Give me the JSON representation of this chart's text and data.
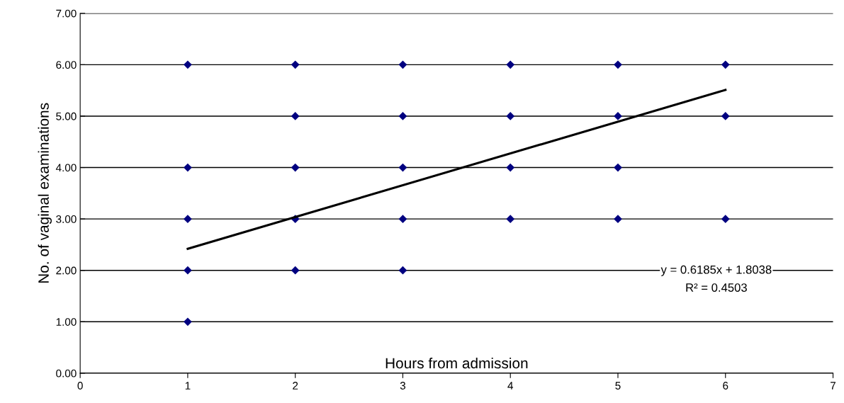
{
  "chart_data": {
    "type": "scatter",
    "xlabel": "Hours from admission",
    "ylabel": "No. of vaginal examinations",
    "series": [
      {
        "color": "#000080",
        "marker": "diamond",
        "x": [
          1,
          1,
          1,
          1,
          1,
          2,
          2,
          2,
          2,
          2,
          3,
          3,
          3,
          3,
          3,
          4,
          4,
          4,
          4,
          5,
          5,
          5,
          5,
          6,
          6,
          6
        ],
        "values": [
          1,
          2,
          3,
          4,
          6,
          2,
          3,
          4,
          5,
          6,
          2,
          3,
          4,
          5,
          6,
          3,
          4,
          5,
          6,
          3,
          4,
          5,
          6,
          3,
          5,
          6
        ]
      },
      {
        "type": "line",
        "color": "#000000",
        "marker": "none",
        "x": [
          1,
          6
        ],
        "values": [
          2.42,
          5.51
        ]
      }
    ],
    "annotations": [
      "y = 0.6185x + 1.8038",
      "R² = 0.4503"
    ],
    "xlim": [
      0,
      7
    ],
    "xticks": [
      0,
      1,
      2,
      3,
      4,
      5,
      6,
      7
    ],
    "ylim": [
      0,
      7
    ],
    "yticks": [
      {
        "value": 0,
        "label": "0.00"
      },
      {
        "value": 1,
        "label": "1.00"
      },
      {
        "value": 2,
        "label": "2.00"
      },
      {
        "value": 3,
        "label": "3.00"
      },
      {
        "value": 4,
        "label": "4.00"
      },
      {
        "value": 5,
        "label": "5.00"
      },
      {
        "value": 6,
        "label": "6.00"
      },
      {
        "value": 7,
        "label": "7.00"
      }
    ],
    "grid": "y",
    "legend": false
  }
}
